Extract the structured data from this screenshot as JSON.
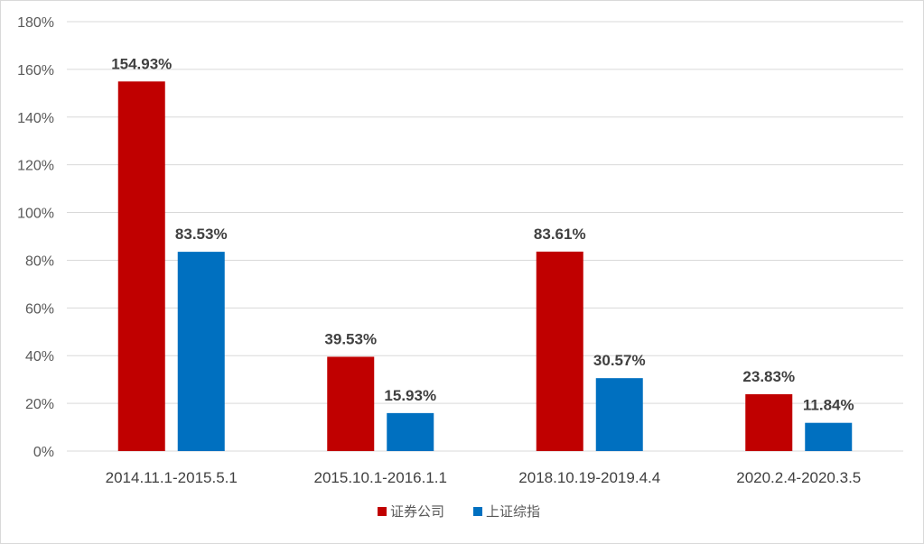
{
  "chart_data": {
    "type": "bar",
    "categories": [
      "2014.11.1-2015.5.1",
      "2015.10.1-2016.1.1",
      "2018.10.19-2019.4.4",
      "2020.2.4-2020.3.5"
    ],
    "series": [
      {
        "name": "证券公司",
        "color": "#C00000",
        "values": [
          154.93,
          39.53,
          83.61,
          23.83
        ],
        "labels": [
          "154.93%",
          "39.53%",
          "83.61%",
          "23.83%"
        ]
      },
      {
        "name": "上证综指",
        "color": "#0070C0",
        "values": [
          83.53,
          15.93,
          30.57,
          11.84
        ],
        "labels": [
          "83.53%",
          "15.93%",
          "30.57%",
          "11.84%"
        ]
      }
    ],
    "ylim": [
      0,
      180
    ],
    "yticks": [
      0,
      20,
      40,
      60,
      80,
      100,
      120,
      140,
      160,
      180
    ],
    "ytick_labels": [
      "0%",
      "20%",
      "40%",
      "60%",
      "80%",
      "100%",
      "120%",
      "140%",
      "160%",
      "180%"
    ],
    "grid": true,
    "legend_position": "bottom"
  }
}
